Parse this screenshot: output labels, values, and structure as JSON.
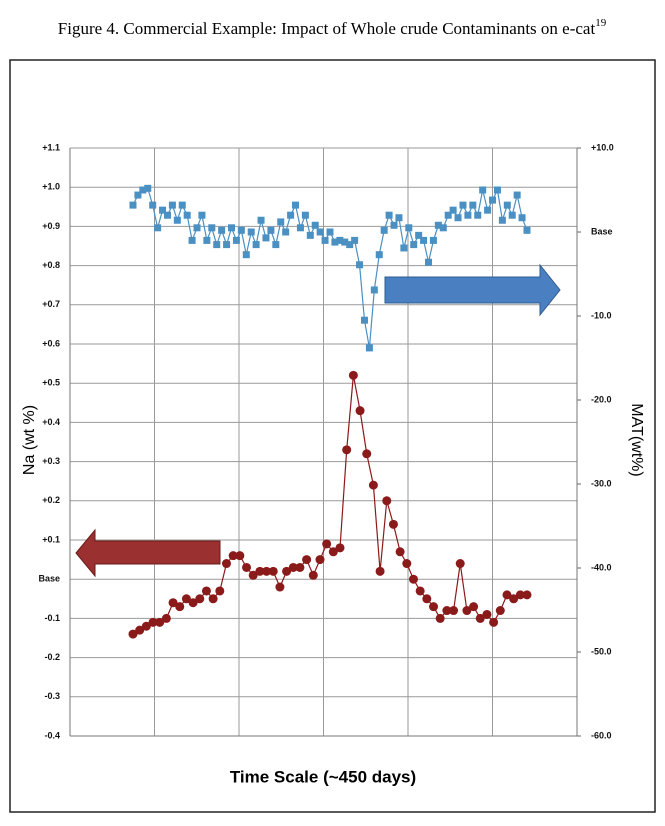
{
  "chart_data": {
    "type": "line",
    "title": "Figure 4. Commercial Example: Impact of Whole crude Contaminants on e-cat",
    "title_ref": "19",
    "xlabel": "Time Scale (~450 days)",
    "ylabel": "Na (wt %)",
    "y2label": "MAT(wt%)",
    "grid": true,
    "ylim": [
      -0.4,
      1.1
    ],
    "yticks": [
      {
        "value": 1.1,
        "label": "+1.1"
      },
      {
        "value": 1.0,
        "label": "+1.0"
      },
      {
        "value": 0.9,
        "label": "+0.9"
      },
      {
        "value": 0.8,
        "label": "+0.8"
      },
      {
        "value": 0.7,
        "label": "+0.7"
      },
      {
        "value": 0.6,
        "label": "+0.6"
      },
      {
        "value": 0.5,
        "label": "+0.5"
      },
      {
        "value": 0.4,
        "label": "+0.4"
      },
      {
        "value": 0.3,
        "label": "+0.3"
      },
      {
        "value": 0.2,
        "label": "+0.2"
      },
      {
        "value": 0.1,
        "label": "+0.1"
      },
      {
        "value": 0,
        "label": "Base"
      },
      -0.1,
      -0.2,
      -0.3,
      -0.4
    ],
    "y2lim": [
      -60,
      10
    ],
    "y2ticks": [
      {
        "value": 10,
        "label": "+10.0"
      },
      {
        "value": 0,
        "label": "Base"
      },
      {
        "value": -10,
        "label": "-10.0"
      },
      {
        "value": -20,
        "label": "-20.0"
      },
      {
        "value": -30,
        "label": "-30.0"
      },
      {
        "value": -40,
        "label": "-40.0"
      },
      {
        "value": -50,
        "label": "-50.0"
      },
      {
        "value": -60,
        "label": "-60.0"
      }
    ],
    "series": [
      {
        "color": "#8b1a1a",
        "axis": "y",
        "marker": "circle",
        "values": [
          -0.14,
          -0.13,
          -0.12,
          -0.11,
          -0.11,
          -0.1,
          -0.06,
          -0.07,
          -0.05,
          -0.06,
          -0.05,
          -0.03,
          -0.05,
          -0.03,
          0.04,
          0.06,
          0.06,
          0.03,
          0.01,
          0.02,
          0.02,
          0.02,
          -0.02,
          0.02,
          0.03,
          0.03,
          0.05,
          0.01,
          0.05,
          0.09,
          0.07,
          0.08,
          0.33,
          0.52,
          0.43,
          0.32,
          0.24,
          0.02,
          0.2,
          0.14,
          0.07,
          0.04,
          0.0,
          -0.03,
          -0.05,
          -0.07,
          -0.1,
          -0.08,
          -0.08,
          0.04,
          -0.08,
          -0.07,
          -0.1,
          -0.09,
          -0.11,
          -0.08,
          -0.04,
          -0.05,
          -0.04,
          -0.04
        ]
      },
      {
        "color": "#4a90c2",
        "axis": "y2",
        "marker": "square",
        "values": [
          3.2,
          4.4,
          5.0,
          5.2,
          3.2,
          0.5,
          2.6,
          2.0,
          3.2,
          1.4,
          3.2,
          2.0,
          -1.0,
          0.5,
          2.0,
          -1.0,
          0.5,
          -1.5,
          0.2,
          -1.5,
          0.5,
          -1.0,
          0.2,
          -2.7,
          0.0,
          -1.5,
          1.4,
          -0.7,
          0.2,
          -1.5,
          1.2,
          0.0,
          2.0,
          3.2,
          0.5,
          2.0,
          -0.4,
          0.8,
          0.0,
          -1.0,
          0.0,
          -1.2,
          -1.0,
          -1.2,
          -1.5,
          -1.0,
          -3.9,
          -10.5,
          -13.8,
          -6.9,
          -2.7,
          0.2,
          2.0,
          0.8,
          1.7,
          -1.9,
          0.5,
          -1.5,
          -0.4,
          -1.0,
          -3.6,
          -1.0,
          0.8,
          0.5,
          2.0,
          2.6,
          1.7,
          3.2,
          2.0,
          3.2,
          2.0,
          5.0,
          2.6,
          3.8,
          5.0,
          1.4,
          3.2,
          2.0,
          4.4,
          1.7,
          0.2
        ]
      }
    ]
  }
}
